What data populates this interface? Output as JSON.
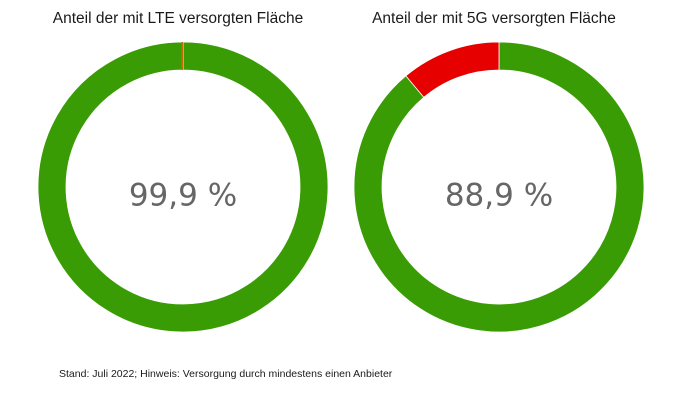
{
  "chart_data": [
    {
      "type": "pie",
      "title": "Anteil der mit LTE versorgten Fläche",
      "center_label": "99,9 %",
      "slices": [
        {
          "value": 99.9,
          "color": "#3a9c05"
        },
        {
          "value": 0.1,
          "color": "#c96a00"
        }
      ]
    },
    {
      "type": "pie",
      "title": "Anteil der mit 5G versorgten Fläche",
      "center_label": "88,9 %",
      "slices": [
        {
          "value": 88.9,
          "color": "#3a9c05"
        },
        {
          "value": 11.1,
          "color": "#e60000"
        }
      ]
    }
  ],
  "footnote": "Stand: Juli 2022; Hinweis: Versorgung durch mindestens einen Anbieter"
}
